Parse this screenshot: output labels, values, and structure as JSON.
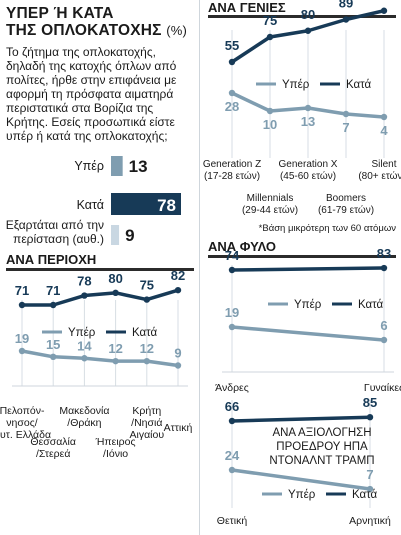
{
  "title_line1": "ΥΠΕΡ Ή ΚΑΤΑ",
  "title_line2": "ΤΗΣ ΟΠΛΟΚΑΤΟΧΗΣ",
  "title_unit": "(%)",
  "question": "Το ζήτημα της οπλοκατοχής, δηλαδή της κατοχής όπλων από πολίτες, ήρθε στην επιφάνεια με αφορμή τη πρόσφατα αιματηρά περιστατικά στα Βορίζια της Κρήτης. Εσείς προσωπικά είστε υπέρ ή κατά της οπλοκατοχής;",
  "colors": {
    "for": "#7f9db0",
    "against": "#173a57",
    "undecided": "#c9d7e2",
    "rule": "#2b2b2b"
  },
  "legend": {
    "for": "Υπέρ",
    "against": "Κατά"
  },
  "chart_data": [
    {
      "type": "bar",
      "categories": [
        "Υπέρ",
        "Κατά",
        "Εξαρτάται από την περίσταση (αυθ.)"
      ],
      "values": [
        13,
        78,
        9
      ]
    },
    {
      "type": "line",
      "title": "ΑΝΑ ΠΕΡΙΟΧΗ",
      "categories": [
        "Πελοπόν-νησος/ Δυτ. Ελλάδα",
        "Θεσσαλία /Στερεά",
        "Μακεδονία /Θράκη",
        "Ήπειρος /Ιόνιο",
        "Κρήτη /Νησιά Αιγαίου",
        "Αττική"
      ],
      "series": [
        {
          "name": "Υπέρ",
          "values": [
            19,
            15,
            14,
            12,
            12,
            9
          ]
        },
        {
          "name": "Κατά",
          "values": [
            71,
            71,
            78,
            80,
            75,
            82
          ]
        }
      ]
    },
    {
      "type": "line",
      "title": "ΑΝΑ ΓΕΝΙΕΣ",
      "categories": [
        "Generation Z (17-28 ετών)",
        "Millennials (29-44 ετών)",
        "Generation X (45-60 ετών)",
        "Boomers (61-79 ετών)",
        "Silent (80+ ετών)*"
      ],
      "series": [
        {
          "name": "Υπέρ",
          "values": [
            28,
            10,
            13,
            7,
            4
          ]
        },
        {
          "name": "Κατά",
          "values": [
            55,
            75,
            80,
            89,
            96
          ]
        }
      ],
      "note": "*Βάση μικρότερη των 60 ατόμων"
    },
    {
      "type": "line",
      "title": "ΑΝΑ ΦΥΛΟ",
      "categories": [
        "Άνδρες",
        "Γυναίκες"
      ],
      "series": [
        {
          "name": "Υπέρ",
          "values": [
            19,
            6
          ]
        },
        {
          "name": "Κατά",
          "values": [
            74,
            83
          ]
        }
      ]
    },
    {
      "type": "line",
      "title": "ΑΝΑ ΑΞΙΟΛΟΓΗΣΗ ΠΡΟΕΔΡΟΥ ΗΠΑ ΝΤΟΝΑΛΝΤ ΤΡΑΜΠ",
      "categories": [
        "Θετική",
        "Αρνητική"
      ],
      "series": [
        {
          "name": "Υπέρ",
          "values": [
            24,
            7
          ]
        },
        {
          "name": "Κατά",
          "values": [
            66,
            85
          ]
        }
      ]
    }
  ]
}
